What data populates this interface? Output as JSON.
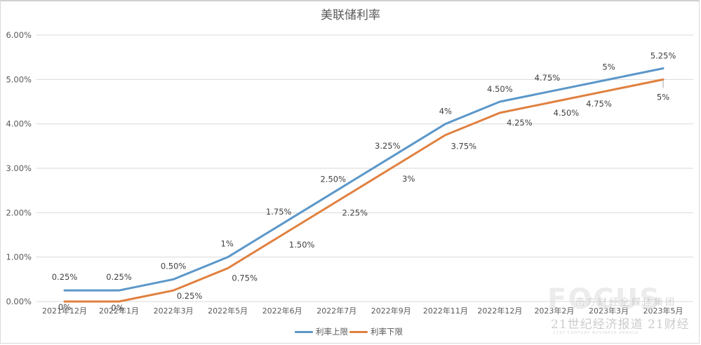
{
  "chart_data": {
    "type": "line",
    "title": "美联储利率",
    "xlabel": "",
    "ylabel": "",
    "ylim": [
      0,
      6
    ],
    "yticks": [
      "0.00%",
      "1.00%",
      "2.00%",
      "3.00%",
      "4.00%",
      "5.00%",
      "6.00%"
    ],
    "grid": true,
    "legend_position": "bottom",
    "categories": [
      "2021年12月",
      "2022年1月",
      "2022年3月",
      "2022年5月",
      "2022年6月",
      "2022年7月",
      "2022年9月",
      "2022年11月",
      "2022年12月",
      "2023年2月",
      "2023年3月",
      "2023年5月"
    ],
    "series": [
      {
        "name": "利率上限",
        "color": "#5b97c9",
        "values": [
          0.25,
          0.25,
          0.5,
          1.0,
          1.75,
          2.5,
          3.25,
          4.0,
          4.5,
          4.75,
          5.0,
          5.25
        ],
        "labels": [
          "0.25%",
          "0.25%",
          "0.50%",
          "1%",
          "1.75%",
          "2.50%",
          "3.25%",
          "4%",
          "4.50%",
          "4.75%",
          "5%",
          "5.25%"
        ]
      },
      {
        "name": "利率下限",
        "color": "#e0803f",
        "values": [
          0,
          0,
          0.25,
          0.75,
          1.5,
          2.25,
          3.0,
          3.75,
          4.25,
          4.5,
          4.75,
          5.0
        ],
        "labels": [
          "0%",
          "0%",
          "0.25%",
          "0.75%",
          "1.50%",
          "2.25%",
          "3%",
          "3.75%",
          "4.25%",
          "4.50%",
          "4.75%",
          "5%"
        ]
      }
    ]
  },
  "watermark": {
    "line1": "南方财经全媒体集团",
    "line2": "21世纪经济报道 21财经",
    "line3": "21ST CENTURY BUSINESS HERALD"
  }
}
